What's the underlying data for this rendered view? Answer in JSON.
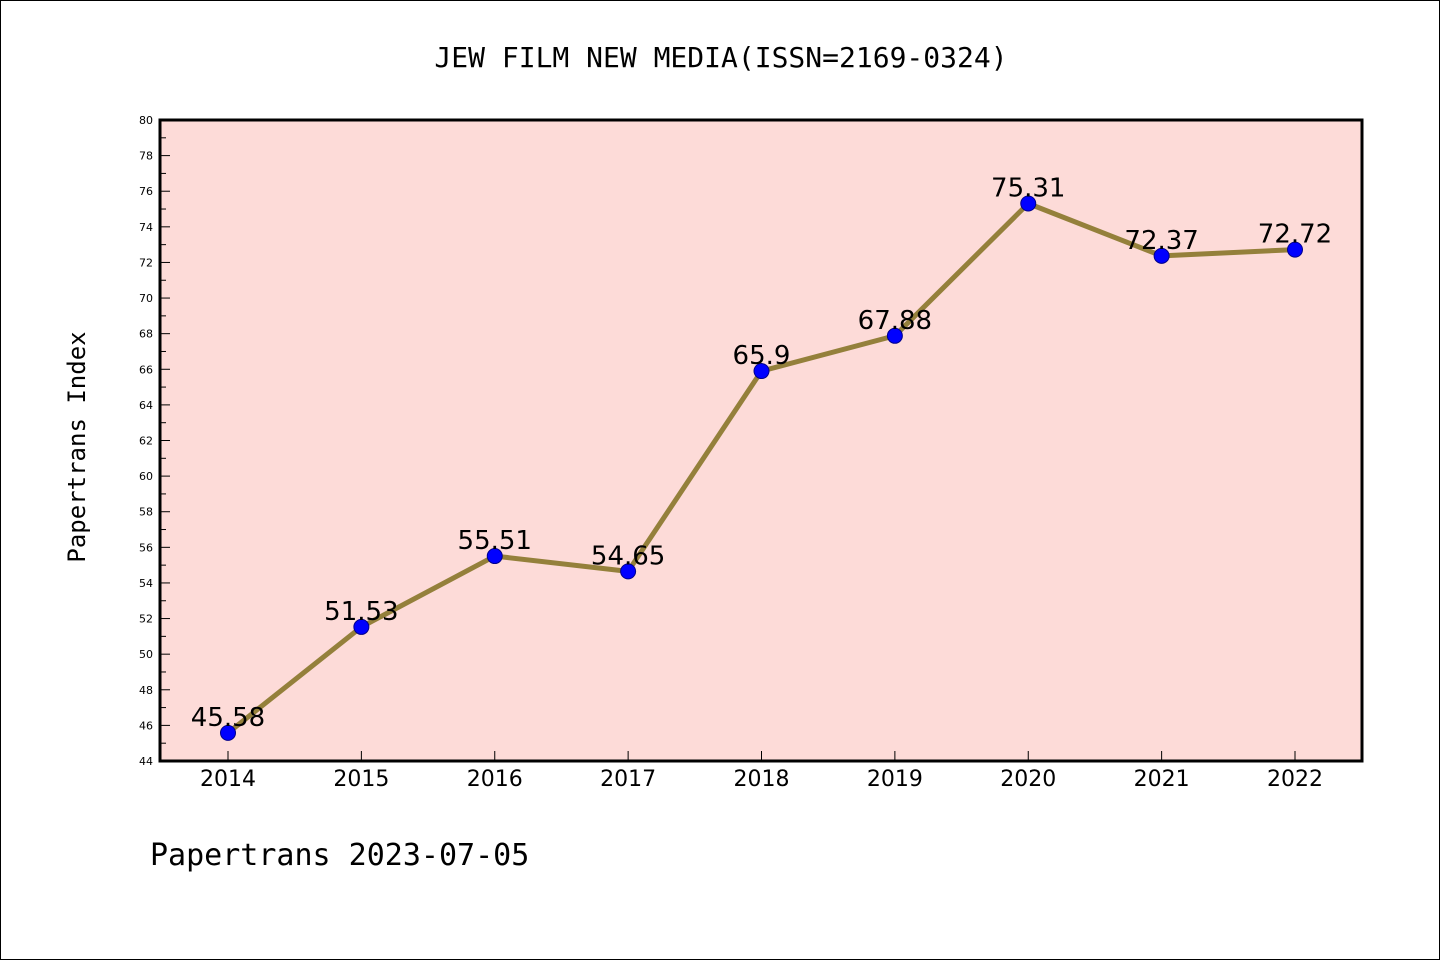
{
  "chart_data": {
    "type": "line",
    "title": "JEW FILM NEW MEDIA(ISSN=2169-0324)",
    "xlabel": "",
    "ylabel": "Papertrans Index",
    "categories": [
      "2014",
      "2015",
      "2016",
      "2017",
      "2018",
      "2019",
      "2020",
      "2021",
      "2022"
    ],
    "series": [
      {
        "values": [
          45.58,
          51.53,
          55.51,
          54.65,
          65.9,
          67.88,
          75.31,
          72.37,
          72.72
        ],
        "labels": [
          "45.58",
          "51.53",
          "55.51",
          "54.65",
          "65.9",
          "67.88",
          "75.31",
          "72.37",
          "72.72"
        ]
      }
    ],
    "ylim": [
      44,
      80
    ],
    "yticks": [
      "44",
      "46",
      "48",
      "50",
      "52",
      "54",
      "56",
      "58",
      "60",
      "62",
      "64",
      "66",
      "68",
      "70",
      "72",
      "74",
      "76",
      "78",
      "80"
    ],
    "grid": false,
    "colors": {
      "plot_background": "#fddbd8",
      "line": "#94803b",
      "marker": "#0000ff",
      "axis": "#000000"
    }
  },
  "footer": {
    "text": "Papertrans 2023-07-05"
  }
}
